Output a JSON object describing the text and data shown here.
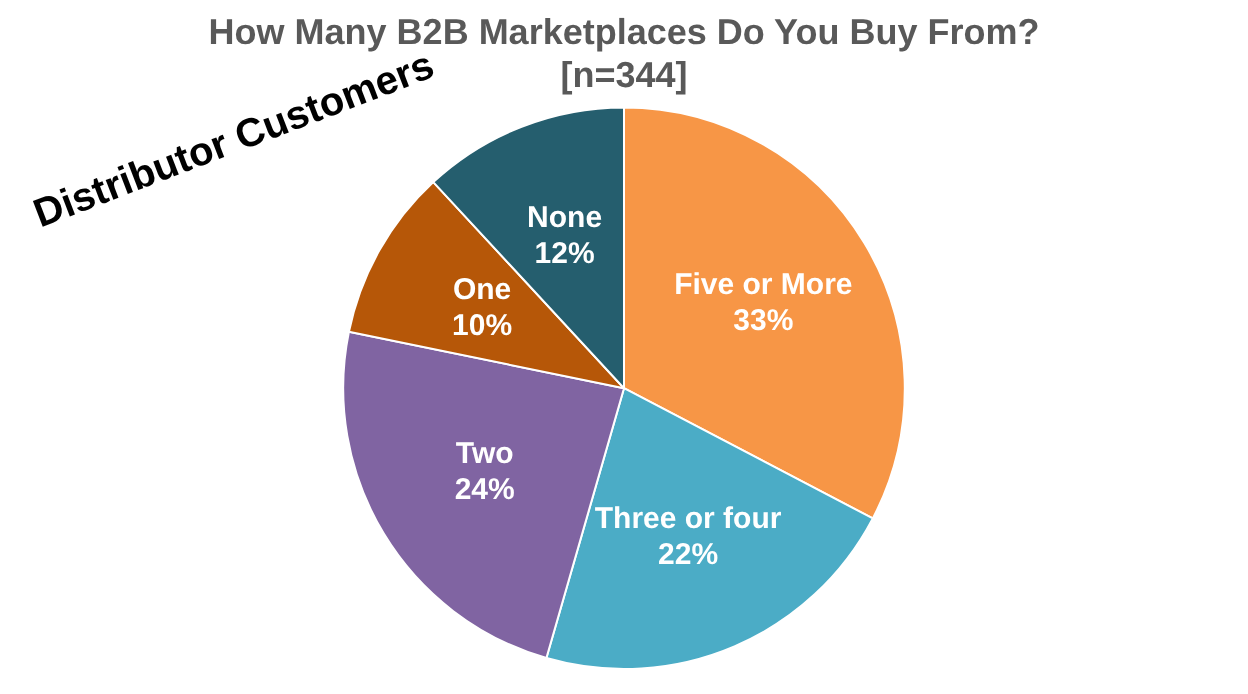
{
  "chart_data": {
    "type": "pie",
    "title": "How Many B2B Marketplaces Do You Buy From?",
    "subtitle": "[n=344]",
    "categories": [
      "Five or More",
      "Three or four",
      "Two",
      "One",
      "None"
    ],
    "values": [
      33,
      22,
      24,
      10,
      12
    ],
    "value_labels": [
      "33%",
      "22%",
      "24%",
      "10%",
      "12%"
    ],
    "colors": [
      "#f79646",
      "#4bacc6",
      "#8064a2",
      "#b65708",
      "#255e6e"
    ],
    "annotations": [
      "Distributor Customers"
    ],
    "legend": false
  }
}
